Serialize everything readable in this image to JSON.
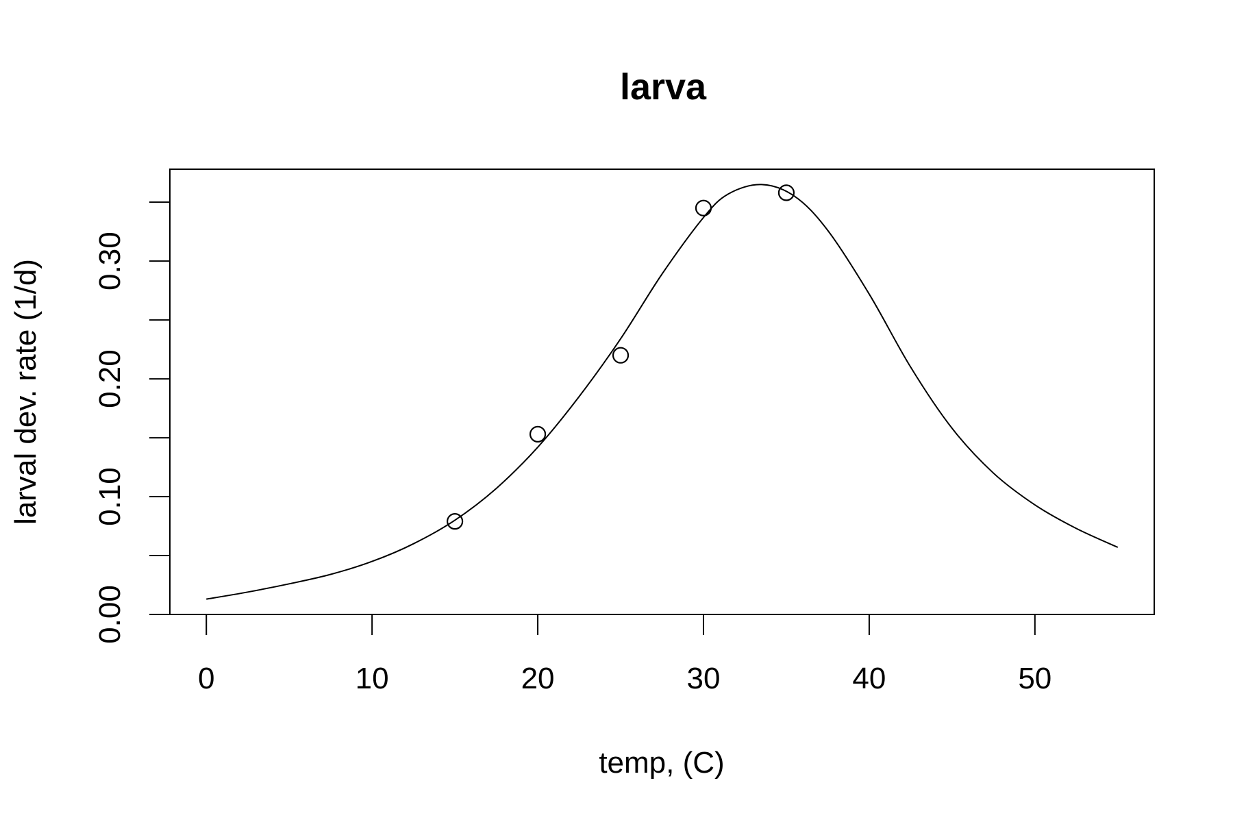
{
  "chart_data": {
    "type": "scatter",
    "title": "larva",
    "xlabel": "temp, (C)",
    "ylabel": "larval dev. rate (1/d)",
    "xlim": [
      -2.2,
      57.2
    ],
    "ylim": [
      0,
      0.378
    ],
    "x_ticks": [
      0,
      10,
      20,
      30,
      40,
      50
    ],
    "x_tick_labels": [
      "0",
      "10",
      "20",
      "30",
      "40",
      "50"
    ],
    "y_ticks": [
      0.0,
      0.05,
      0.1,
      0.15,
      0.2,
      0.25,
      0.3,
      0.35
    ],
    "y_tick_labels": [
      "0.00",
      "",
      "0.10",
      "",
      "0.20",
      "",
      "0.30",
      ""
    ],
    "grid": false,
    "series": [
      {
        "kind": "points",
        "marker": "open-circle",
        "x": [
          15,
          20,
          25,
          30,
          35
        ],
        "y": [
          0.079,
          0.153,
          0.22,
          0.345,
          0.358
        ]
      },
      {
        "kind": "fitted-curve",
        "x": [
          0,
          2.5,
          5,
          7.5,
          10,
          12.5,
          15,
          17.5,
          20,
          22.5,
          25,
          27.5,
          30,
          31.5,
          33.5,
          35.5,
          37.5,
          40,
          42.5,
          45,
          47.5,
          50,
          52.5,
          55
        ],
        "y": [
          0.013,
          0.019,
          0.026,
          0.034,
          0.045,
          0.06,
          0.08,
          0.107,
          0.142,
          0.185,
          0.234,
          0.289,
          0.337,
          0.357,
          0.365,
          0.355,
          0.326,
          0.272,
          0.21,
          0.158,
          0.12,
          0.093,
          0.073,
          0.057
        ]
      }
    ]
  }
}
